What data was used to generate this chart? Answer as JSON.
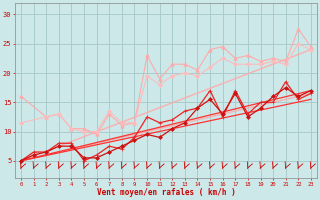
{
  "background_color": "#cce8e8",
  "grid_color": "#aacccc",
  "xlabel": "Vent moyen/en rafales ( km/h )",
  "xlabel_color": "#cc0000",
  "tick_color": "#cc0000",
  "xlim": [
    -0.5,
    23.5
  ],
  "ylim": [
    2,
    32
  ],
  "yticks": [
    5,
    10,
    15,
    20,
    25,
    30
  ],
  "xticks": [
    0,
    1,
    2,
    3,
    4,
    5,
    6,
    7,
    8,
    9,
    10,
    11,
    12,
    13,
    14,
    15,
    16,
    17,
    18,
    19,
    20,
    21,
    22,
    23
  ],
  "lines": [
    {
      "x": [
        0,
        23
      ],
      "y": [
        5.0,
        16.5
      ],
      "color": "#ffaaaa",
      "lw": 1.0,
      "marker": null,
      "ms": 0,
      "alpha": 0.9
    },
    {
      "x": [
        0,
        23
      ],
      "y": [
        5.0,
        24.0
      ],
      "color": "#ffaaaa",
      "lw": 1.0,
      "marker": null,
      "ms": 0,
      "alpha": 0.9
    },
    {
      "x": [
        0,
        23
      ],
      "y": [
        5.0,
        15.5
      ],
      "color": "#ff3333",
      "lw": 0.9,
      "marker": null,
      "ms": 0,
      "alpha": 1.0
    },
    {
      "x": [
        0,
        23
      ],
      "y": [
        5.0,
        17.0
      ],
      "color": "#ff3333",
      "lw": 0.9,
      "marker": null,
      "ms": 0,
      "alpha": 1.0
    },
    {
      "x": [
        0,
        2,
        3,
        4,
        5,
        6,
        7,
        8,
        9,
        10,
        11,
        12,
        13,
        14,
        15,
        16,
        17,
        18,
        19,
        20,
        21,
        22,
        23
      ],
      "y": [
        16.0,
        12.5,
        13.0,
        10.5,
        10.5,
        9.5,
        13.0,
        11.0,
        11.5,
        23.0,
        19.0,
        21.5,
        21.5,
        20.5,
        24.0,
        24.5,
        22.5,
        23.0,
        22.0,
        22.5,
        22.0,
        27.5,
        24.5
      ],
      "color": "#ffaaaa",
      "lw": 0.8,
      "marker": "^",
      "ms": 2.5,
      "alpha": 1.0
    },
    {
      "x": [
        0,
        2,
        3,
        4,
        5,
        6,
        7,
        8,
        9,
        10,
        11,
        12,
        13,
        14,
        15,
        16,
        17,
        18,
        19,
        20,
        21,
        22,
        23
      ],
      "y": [
        11.5,
        12.5,
        13.0,
        10.5,
        10.0,
        10.0,
        13.5,
        11.5,
        11.5,
        19.5,
        18.0,
        19.5,
        20.0,
        19.5,
        21.0,
        22.5,
        21.5,
        21.5,
        21.5,
        22.0,
        21.5,
        25.0,
        24.0
      ],
      "color": "#ffbbbb",
      "lw": 0.8,
      "marker": "D",
      "ms": 2.0,
      "alpha": 1.0
    },
    {
      "x": [
        0,
        1,
        2,
        3,
        4,
        5,
        6,
        7,
        8,
        9,
        10,
        11,
        12,
        13,
        14,
        15,
        16,
        17,
        18,
        19,
        20,
        21,
        22,
        23
      ],
      "y": [
        5.0,
        6.5,
        6.5,
        8.0,
        8.0,
        5.0,
        6.0,
        7.5,
        7.0,
        9.0,
        12.5,
        11.5,
        12.0,
        13.5,
        14.0,
        17.0,
        12.5,
        17.0,
        13.0,
        15.0,
        15.0,
        18.5,
        15.5,
        16.5
      ],
      "color": "#ee2222",
      "lw": 0.9,
      "marker": "+",
      "ms": 3.5,
      "alpha": 1.0
    },
    {
      "x": [
        0,
        1,
        2,
        3,
        4,
        5,
        6,
        7,
        8,
        9,
        10,
        11,
        12,
        13,
        14,
        15,
        16,
        17,
        18,
        19,
        20,
        21,
        22,
        23
      ],
      "y": [
        5.0,
        6.0,
        6.5,
        7.5,
        7.5,
        5.5,
        5.5,
        6.5,
        7.5,
        8.5,
        9.5,
        9.0,
        10.5,
        11.5,
        14.0,
        15.5,
        13.0,
        16.5,
        12.5,
        14.0,
        16.0,
        17.5,
        16.0,
        17.0
      ],
      "color": "#cc1111",
      "lw": 0.9,
      "marker": "D",
      "ms": 2.0,
      "alpha": 1.0
    }
  ],
  "arrows": {
    "color": "#cc0000",
    "y_data": 3.8,
    "lw": 0.6
  }
}
